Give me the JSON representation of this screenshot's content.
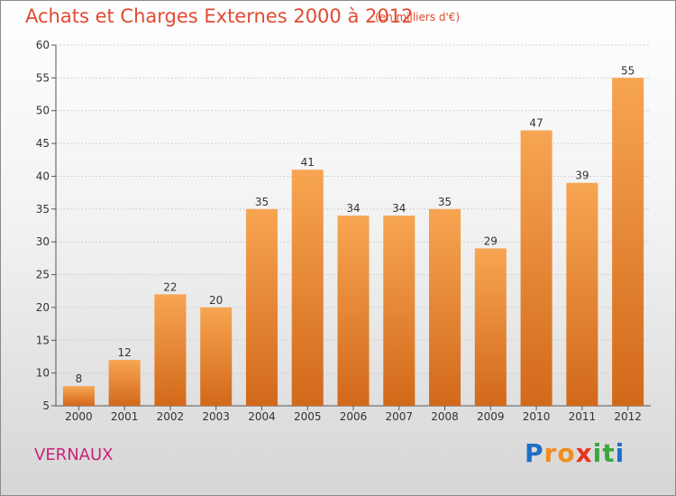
{
  "header": {
    "title": "Achats et Charges Externes 2000 à 2012",
    "subtitle": "(en milliers d'€)"
  },
  "footer": {
    "commune": "VERNAUX",
    "logo_letters": [
      {
        "ch": "P",
        "color": "#1f6fc9"
      },
      {
        "ch": "r",
        "color": "#f28c1b"
      },
      {
        "ch": "o",
        "color": "#f28c1b"
      },
      {
        "ch": "x",
        "color": "#e8341c"
      },
      {
        "ch": "i",
        "color": "#3aa83a"
      },
      {
        "ch": "t",
        "color": "#3aa83a"
      },
      {
        "ch": "i",
        "color": "#1f6fc9"
      }
    ]
  },
  "chart_data": {
    "type": "bar",
    "categories": [
      "2000",
      "2001",
      "2002",
      "2003",
      "2004",
      "2005",
      "2006",
      "2007",
      "2008",
      "2009",
      "2010",
      "2011",
      "2012"
    ],
    "values": [
      8,
      12,
      22,
      20,
      35,
      41,
      34,
      34,
      35,
      29,
      47,
      39,
      55
    ],
    "ylim": [
      5,
      60
    ],
    "yticks": [
      5,
      10,
      15,
      20,
      25,
      30,
      35,
      40,
      45,
      50,
      55,
      60
    ],
    "grid": true,
    "bar_color_top": "#f7a552",
    "bar_color_bottom": "#d2691a"
  }
}
